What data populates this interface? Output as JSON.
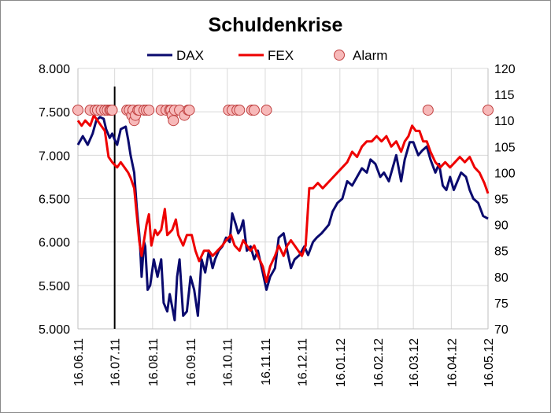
{
  "chart_data": {
    "type": "line",
    "title": "Schuldenkrise",
    "x_tick_labels": [
      "16.06.11",
      "16.07.11",
      "16.08.11",
      "16.09.11",
      "16.10.11",
      "16.11.11",
      "16.12.11",
      "16.01.12",
      "16.02.12",
      "16.03.12",
      "16.04.12",
      "16.05.12"
    ],
    "y_left": {
      "lim": [
        5000,
        8000
      ],
      "ticks": [
        "5.000",
        "5.500",
        "6.000",
        "6.500",
        "7.000",
        "7.500",
        "8.000"
      ]
    },
    "y_right": {
      "lim": [
        70,
        120
      ],
      "ticks": [
        "70",
        "75",
        "80",
        "85",
        "90",
        "95",
        "100",
        "105",
        "110",
        "115",
        "120"
      ]
    },
    "grid": true,
    "legend_position": "top",
    "vertical_marker_x": "2011-07-16",
    "series": [
      {
        "name": "DAX",
        "axis": "left",
        "color": "#0a0a6e",
        "points": [
          [
            "2011-06-16",
            7120
          ],
          [
            "2011-06-20",
            7220
          ],
          [
            "2011-06-24",
            7120
          ],
          [
            "2011-06-28",
            7250
          ],
          [
            "2011-07-01",
            7400
          ],
          [
            "2011-07-04",
            7440
          ],
          [
            "2011-07-07",
            7420
          ],
          [
            "2011-07-09",
            7300
          ],
          [
            "2011-07-12",
            7200
          ],
          [
            "2011-07-14",
            7250
          ],
          [
            "2011-07-16",
            7180
          ],
          [
            "2011-07-18",
            7120
          ],
          [
            "2011-07-21",
            7300
          ],
          [
            "2011-07-25",
            7330
          ],
          [
            "2011-07-27",
            7180
          ],
          [
            "2011-07-29",
            7000
          ],
          [
            "2011-08-01",
            6800
          ],
          [
            "2011-08-03",
            6400
          ],
          [
            "2011-08-05",
            6100
          ],
          [
            "2011-08-06",
            5900
          ],
          [
            "2011-08-07",
            5600
          ],
          [
            "2011-08-09",
            6000
          ],
          [
            "2011-08-10",
            5950
          ],
          [
            "2011-08-12",
            5450
          ],
          [
            "2011-08-14",
            5500
          ],
          [
            "2011-08-17",
            5800
          ],
          [
            "2011-08-20",
            5600
          ],
          [
            "2011-08-23",
            5800
          ],
          [
            "2011-08-25",
            5300
          ],
          [
            "2011-08-28",
            5200
          ],
          [
            "2011-08-30",
            5400
          ],
          [
            "2011-09-01",
            5250
          ],
          [
            "2011-09-03",
            5100
          ],
          [
            "2011-09-05",
            5600
          ],
          [
            "2011-09-07",
            5800
          ],
          [
            "2011-09-10",
            5150
          ],
          [
            "2011-09-13",
            5200
          ],
          [
            "2011-09-16",
            5600
          ],
          [
            "2011-09-19",
            5450
          ],
          [
            "2011-09-22",
            5150
          ],
          [
            "2011-09-25",
            5800
          ],
          [
            "2011-09-28",
            5650
          ],
          [
            "2011-10-01",
            5900
          ],
          [
            "2011-10-04",
            5700
          ],
          [
            "2011-10-06",
            5800
          ],
          [
            "2011-10-09",
            5900
          ],
          [
            "2011-10-12",
            5950
          ],
          [
            "2011-10-15",
            6050
          ],
          [
            "2011-10-18",
            6000
          ],
          [
            "2011-10-20",
            6330
          ],
          [
            "2011-10-23",
            6200
          ],
          [
            "2011-10-25",
            6100
          ],
          [
            "2011-10-27",
            6150
          ],
          [
            "2011-10-29",
            6250
          ],
          [
            "2011-11-01",
            5900
          ],
          [
            "2011-11-04",
            5950
          ],
          [
            "2011-11-07",
            5800
          ],
          [
            "2011-11-10",
            5900
          ],
          [
            "2011-11-14",
            5650
          ],
          [
            "2011-11-17",
            5450
          ],
          [
            "2011-11-20",
            5600
          ],
          [
            "2011-11-24",
            5700
          ],
          [
            "2011-11-27",
            6050
          ],
          [
            "2011-12-01",
            6100
          ],
          [
            "2011-12-04",
            5900
          ],
          [
            "2011-12-07",
            5700
          ],
          [
            "2011-12-10",
            5800
          ],
          [
            "2011-12-14",
            5850
          ],
          [
            "2011-12-18",
            5950
          ],
          [
            "2011-12-21",
            5850
          ],
          [
            "2011-12-25",
            6000
          ],
          [
            "2011-12-28",
            6050
          ],
          [
            "2012-01-01",
            6100
          ],
          [
            "2012-01-04",
            6150
          ],
          [
            "2012-01-07",
            6200
          ],
          [
            "2012-01-10",
            6350
          ],
          [
            "2012-01-14",
            6450
          ],
          [
            "2012-01-18",
            6500
          ],
          [
            "2012-01-22",
            6700
          ],
          [
            "2012-01-26",
            6650
          ],
          [
            "2012-01-30",
            6750
          ],
          [
            "2012-02-03",
            6850
          ],
          [
            "2012-02-07",
            6800
          ],
          [
            "2012-02-10",
            6950
          ],
          [
            "2012-02-14",
            6900
          ],
          [
            "2012-02-18",
            6750
          ],
          [
            "2012-02-21",
            6800
          ],
          [
            "2012-02-25",
            6700
          ],
          [
            "2012-02-28",
            6850
          ],
          [
            "2012-03-02",
            7000
          ],
          [
            "2012-03-06",
            6700
          ],
          [
            "2012-03-09",
            6950
          ],
          [
            "2012-03-13",
            7150
          ],
          [
            "2012-03-16",
            7150
          ],
          [
            "2012-03-20",
            7000
          ],
          [
            "2012-03-23",
            7050
          ],
          [
            "2012-03-27",
            7100
          ],
          [
            "2012-03-30",
            6950
          ],
          [
            "2012-04-03",
            6800
          ],
          [
            "2012-04-06",
            6900
          ],
          [
            "2012-04-09",
            6650
          ],
          [
            "2012-04-12",
            6600
          ],
          [
            "2012-04-15",
            6750
          ],
          [
            "2012-04-18",
            6600
          ],
          [
            "2012-04-21",
            6700
          ],
          [
            "2012-04-24",
            6800
          ],
          [
            "2012-04-28",
            6750
          ],
          [
            "2012-05-01",
            6600
          ],
          [
            "2012-05-04",
            6500
          ],
          [
            "2012-05-08",
            6450
          ],
          [
            "2012-05-12",
            6300
          ],
          [
            "2012-05-16",
            6270
          ]
        ]
      },
      {
        "name": "FEX",
        "axis": "right",
        "color": "#ee0000",
        "points": [
          [
            "2011-06-16",
            110
          ],
          [
            "2011-06-19",
            109
          ],
          [
            "2011-06-22",
            110
          ],
          [
            "2011-06-26",
            109
          ],
          [
            "2011-06-29",
            111
          ],
          [
            "2011-07-02",
            110
          ],
          [
            "2011-07-05",
            109
          ],
          [
            "2011-07-08",
            108
          ],
          [
            "2011-07-11",
            103
          ],
          [
            "2011-07-14",
            102
          ],
          [
            "2011-07-18",
            101
          ],
          [
            "2011-07-21",
            102
          ],
          [
            "2011-07-24",
            101
          ],
          [
            "2011-07-27",
            100
          ],
          [
            "2011-07-29",
            99
          ],
          [
            "2011-08-01",
            97
          ],
          [
            "2011-08-03",
            92
          ],
          [
            "2011-08-05",
            87
          ],
          [
            "2011-08-07",
            84
          ],
          [
            "2011-08-09",
            87
          ],
          [
            "2011-08-11",
            90
          ],
          [
            "2011-08-13",
            92
          ],
          [
            "2011-08-15",
            86
          ],
          [
            "2011-08-18",
            89
          ],
          [
            "2011-08-20",
            88
          ],
          [
            "2011-08-23",
            89
          ],
          [
            "2011-08-26",
            93
          ],
          [
            "2011-08-28",
            88
          ],
          [
            "2011-09-01",
            89
          ],
          [
            "2011-09-04",
            91
          ],
          [
            "2011-09-06",
            88
          ],
          [
            "2011-09-10",
            86
          ],
          [
            "2011-09-13",
            88
          ],
          [
            "2011-09-17",
            88
          ],
          [
            "2011-09-20",
            85
          ],
          [
            "2011-09-23",
            83
          ],
          [
            "2011-09-27",
            85
          ],
          [
            "2011-10-01",
            85
          ],
          [
            "2011-10-04",
            84
          ],
          [
            "2011-10-08",
            85
          ],
          [
            "2011-10-12",
            86
          ],
          [
            "2011-10-15",
            87
          ],
          [
            "2011-10-19",
            88
          ],
          [
            "2011-10-22",
            86
          ],
          [
            "2011-10-26",
            85
          ],
          [
            "2011-10-29",
            87
          ],
          [
            "2011-11-01",
            86
          ],
          [
            "2011-11-04",
            85
          ],
          [
            "2011-11-07",
            86
          ],
          [
            "2011-11-10",
            84
          ],
          [
            "2011-11-14",
            82
          ],
          [
            "2011-11-17",
            79
          ],
          [
            "2011-11-20",
            82
          ],
          [
            "2011-11-24",
            84
          ],
          [
            "2011-11-27",
            86
          ],
          [
            "2011-12-01",
            84
          ],
          [
            "2011-12-04",
            86
          ],
          [
            "2011-12-07",
            87
          ],
          [
            "2011-12-10",
            86
          ],
          [
            "2011-12-13",
            85
          ],
          [
            "2011-12-16",
            84
          ],
          [
            "2011-12-19",
            86
          ],
          [
            "2011-12-22",
            97
          ],
          [
            "2011-12-25",
            97
          ],
          [
            "2011-12-29",
            98
          ],
          [
            "2012-01-02",
            97
          ],
          [
            "2012-01-06",
            98
          ],
          [
            "2012-01-10",
            99
          ],
          [
            "2012-01-14",
            100
          ],
          [
            "2012-01-18",
            101
          ],
          [
            "2012-01-22",
            102
          ],
          [
            "2012-01-26",
            104
          ],
          [
            "2012-01-30",
            103
          ],
          [
            "2012-02-03",
            105
          ],
          [
            "2012-02-07",
            106
          ],
          [
            "2012-02-11",
            106
          ],
          [
            "2012-02-15",
            107
          ],
          [
            "2012-02-19",
            106
          ],
          [
            "2012-02-23",
            107
          ],
          [
            "2012-02-27",
            105
          ],
          [
            "2012-03-02",
            106
          ],
          [
            "2012-03-06",
            104
          ],
          [
            "2012-03-09",
            106
          ],
          [
            "2012-03-12",
            107
          ],
          [
            "2012-03-15",
            109
          ],
          [
            "2012-03-18",
            108
          ],
          [
            "2012-03-21",
            108
          ],
          [
            "2012-03-24",
            106
          ],
          [
            "2012-03-27",
            106
          ],
          [
            "2012-03-30",
            104
          ],
          [
            "2012-04-03",
            102
          ],
          [
            "2012-04-07",
            101
          ],
          [
            "2012-04-11",
            102
          ],
          [
            "2012-04-15",
            101
          ],
          [
            "2012-04-19",
            102
          ],
          [
            "2012-04-23",
            103
          ],
          [
            "2012-04-27",
            102
          ],
          [
            "2012-05-01",
            103
          ],
          [
            "2012-05-05",
            101
          ],
          [
            "2012-05-09",
            100
          ],
          [
            "2012-05-13",
            98
          ],
          [
            "2012-05-16",
            96
          ]
        ]
      }
    ],
    "alarm": {
      "name": "Alarm",
      "axis": "right",
      "fill": "#f7b9b9",
      "stroke": "#c04040",
      "points": [
        [
          "2011-06-16",
          112
        ],
        [
          "2011-06-26",
          112
        ],
        [
          "2011-06-30",
          112
        ],
        [
          "2011-07-02",
          112
        ],
        [
          "2011-07-05",
          112
        ],
        [
          "2011-07-08",
          112
        ],
        [
          "2011-07-10",
          112
        ],
        [
          "2011-07-12",
          112
        ],
        [
          "2011-07-13",
          112
        ],
        [
          "2011-07-14",
          112
        ],
        [
          "2011-07-26",
          112
        ],
        [
          "2011-07-28",
          112
        ],
        [
          "2011-07-30",
          111
        ],
        [
          "2011-07-31",
          112
        ],
        [
          "2011-08-01",
          110
        ],
        [
          "2011-08-02",
          111
        ],
        [
          "2011-08-04",
          112
        ],
        [
          "2011-08-05",
          112
        ],
        [
          "2011-08-09",
          112
        ],
        [
          "2011-08-11",
          112
        ],
        [
          "2011-08-13",
          112
        ],
        [
          "2011-08-23",
          112
        ],
        [
          "2011-08-27",
          112
        ],
        [
          "2011-08-30",
          112
        ],
        [
          "2011-08-31",
          112
        ],
        [
          "2011-09-01",
          111
        ],
        [
          "2011-09-02",
          110
        ],
        [
          "2011-09-03",
          112
        ],
        [
          "2011-09-07",
          112
        ],
        [
          "2011-09-11",
          111
        ],
        [
          "2011-09-14",
          112
        ],
        [
          "2011-09-15",
          112
        ],
        [
          "2011-10-17",
          112
        ],
        [
          "2011-10-20",
          112
        ],
        [
          "2011-10-24",
          112
        ],
        [
          "2011-10-26",
          112
        ],
        [
          "2011-11-05",
          112
        ],
        [
          "2011-11-07",
          112
        ],
        [
          "2011-11-17",
          112
        ],
        [
          "2012-03-28",
          112
        ],
        [
          "2012-05-16",
          112
        ]
      ]
    },
    "legend": [
      {
        "label": "DAX",
        "kind": "line",
        "color": "#0a0a6e"
      },
      {
        "label": "FEX",
        "kind": "line",
        "color": "#ee0000"
      },
      {
        "label": "Alarm",
        "kind": "marker",
        "color": "#f7b9b9"
      }
    ]
  }
}
